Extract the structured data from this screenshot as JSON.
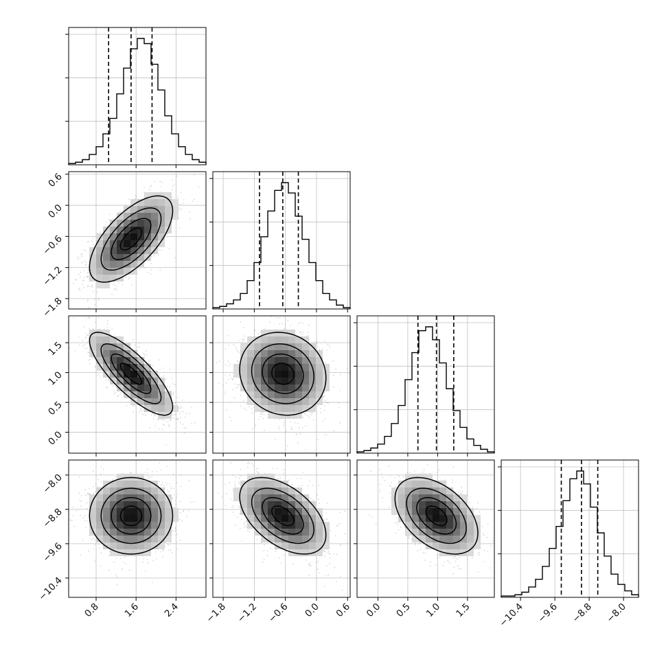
{
  "chart_data": {
    "type": "corner",
    "dimensions": 4,
    "colors": {
      "line": "#000000",
      "grid": "#bfbfbf",
      "scatter": "#8a8a8a"
    },
    "ranges": [
      [
        0.25,
        3.0
      ],
      [
        -2.0,
        0.65
      ],
      [
        -0.35,
        1.95
      ],
      [
        -10.85,
        -7.65
      ]
    ],
    "centers": [
      1.5,
      -0.65,
      0.98,
      -8.95
    ],
    "sigmas": [
      0.42,
      0.42,
      0.35,
      0.45
    ],
    "correlations": [
      [
        1,
        0.65,
        -0.8,
        0.0
      ],
      [
        0.65,
        1,
        -0.1,
        -0.5
      ],
      [
        -0.8,
        -0.1,
        1,
        -0.45
      ],
      [
        0.0,
        -0.5,
        -0.45,
        1
      ]
    ],
    "quantile_lines": [
      [
        1.05,
        1.5,
        1.92
      ],
      [
        -1.1,
        -0.65,
        -0.35
      ],
      [
        0.67,
        0.98,
        1.27
      ],
      [
        -9.45,
        -8.98,
        -8.6
      ]
    ],
    "ticks": [
      {
        "values": [
          0.8,
          1.6,
          2.4
        ],
        "labels": [
          "0.8",
          "1.6",
          "2.4"
        ]
      },
      {
        "values": [
          -1.8,
          -1.2,
          -0.6,
          0.0,
          0.6
        ],
        "labels": [
          "−1.8",
          "−1.2",
          "−0.6",
          "0.0",
          "0.6"
        ]
      },
      {
        "values": [
          0.0,
          0.5,
          1.0,
          1.5
        ],
        "labels": [
          "0.0",
          "0.5",
          "1.0",
          "1.5"
        ]
      },
      {
        "values": [
          -10.4,
          -9.6,
          -8.8,
          -8.0
        ],
        "labels": [
          "−10.4",
          "−9.6",
          "−8.8",
          "−8.0"
        ]
      }
    ],
    "histograms": [
      [
        1,
        2,
        4,
        8,
        14,
        24,
        36,
        55,
        75,
        90,
        98,
        94,
        78,
        58,
        38,
        24,
        14,
        8,
        4,
        2
      ],
      [
        1,
        2,
        4,
        7,
        12,
        22,
        36,
        56,
        76,
        92,
        98,
        90,
        72,
        54,
        36,
        22,
        12,
        7,
        3,
        1
      ],
      [
        1,
        2,
        4,
        7,
        13,
        23,
        37,
        57,
        78,
        95,
        98,
        88,
        70,
        50,
        33,
        20,
        11,
        6,
        3,
        1
      ],
      [
        1,
        1,
        2,
        4,
        8,
        14,
        24,
        38,
        55,
        75,
        92,
        98,
        88,
        70,
        50,
        32,
        18,
        10,
        5,
        2
      ]
    ],
    "contour_levels": [
      0.12,
      0.36,
      0.64,
      0.86
    ]
  }
}
